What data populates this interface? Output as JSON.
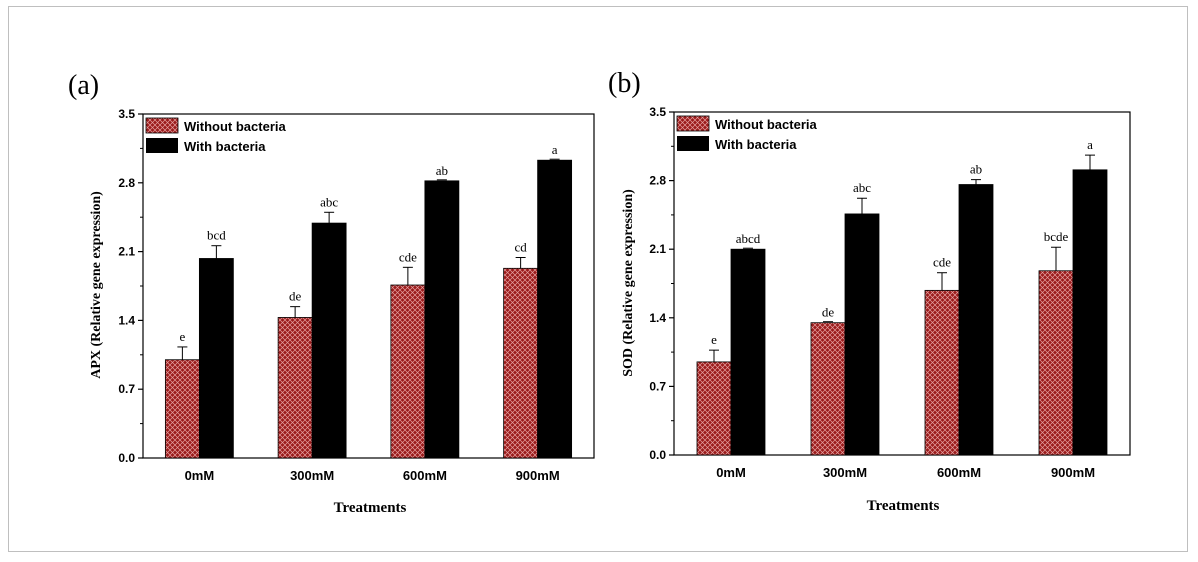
{
  "colors": {
    "without": "#9b1b1b",
    "with": "#000000",
    "hatch": "#e5a0a0"
  },
  "chart_data": [
    {
      "type": "bar",
      "panel_label": "(a)",
      "title": "",
      "xlabel": "Treatments",
      "ylabel": "APX (Relative gene expression)",
      "ylim": [
        0,
        3.5
      ],
      "yticks": [
        "0.0",
        "0.7",
        "1.4",
        "2.1",
        "2.8",
        "3.5"
      ],
      "categories": [
        "0mM",
        "300mM",
        "600mM",
        "900mM"
      ],
      "legend_position": "top-left",
      "series": [
        {
          "name": "Without bacteria",
          "values": [
            1.0,
            1.43,
            1.76,
            1.93
          ],
          "errors": [
            0.13,
            0.11,
            0.18,
            0.11
          ],
          "letters": [
            "e",
            "de",
            "cde",
            "cd"
          ]
        },
        {
          "name": "With bacteria",
          "values": [
            2.03,
            2.39,
            2.82,
            3.03
          ],
          "errors": [
            0.13,
            0.11,
            0.0,
            0.0
          ],
          "letters": [
            "bcd",
            "abc",
            "ab",
            "a"
          ]
        }
      ]
    },
    {
      "type": "bar",
      "panel_label": "(b)",
      "title": "",
      "xlabel": "Treatments",
      "ylabel": "SOD (Relative gene expression)",
      "ylim": [
        0,
        3.5
      ],
      "yticks": [
        "0.0",
        "0.7",
        "1.4",
        "2.1",
        "2.8",
        "3.5"
      ],
      "categories": [
        "0mM",
        "300mM",
        "600mM",
        "900mM"
      ],
      "legend_position": "top-left",
      "series": [
        {
          "name": "Without bacteria",
          "values": [
            0.95,
            1.35,
            1.68,
            1.88
          ],
          "errors": [
            0.12,
            0.0,
            0.18,
            0.24
          ],
          "letters": [
            "e",
            "de",
            "cde",
            "bcde"
          ]
        },
        {
          "name": "With bacteria",
          "values": [
            2.1,
            2.46,
            2.76,
            2.91
          ],
          "errors": [
            0.0,
            0.16,
            0.05,
            0.15
          ],
          "letters": [
            "abcd",
            "abc",
            "ab",
            "a"
          ]
        }
      ]
    }
  ]
}
